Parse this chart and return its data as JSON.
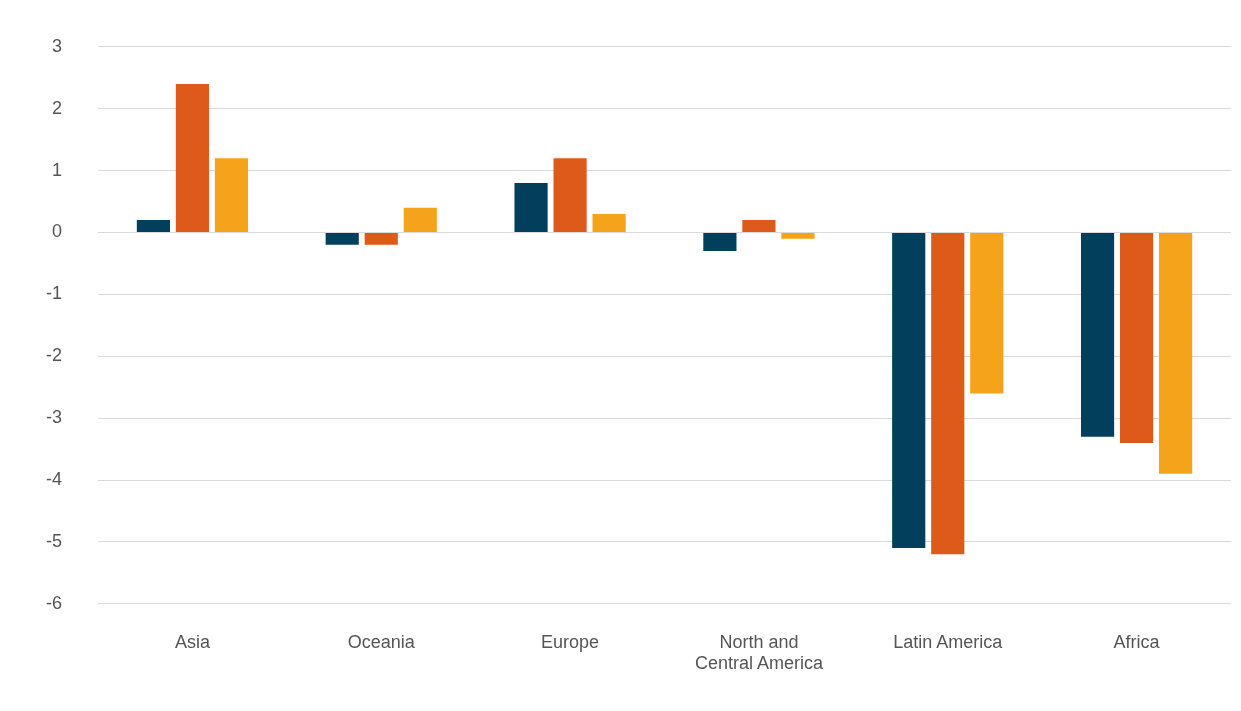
{
  "chart_data": {
    "type": "bar",
    "categories": [
      "Asia",
      "Oceania",
      "Europe",
      "North and Central America",
      "Latin America",
      "Africa"
    ],
    "series": [
      {
        "color": "#023f5c",
        "values": [
          0.2,
          -0.2,
          0.8,
          -0.3,
          -5.1,
          -3.3
        ]
      },
      {
        "color": "#dd5a1b",
        "values": [
          2.4,
          -0.2,
          1.2,
          0.2,
          -5.2,
          -3.4
        ]
      },
      {
        "color": "#f5a31a",
        "values": [
          1.2,
          0.4,
          0.3,
          -0.1,
          -2.6,
          -3.9
        ]
      }
    ],
    "ylim": [
      -6,
      3
    ],
    "yticks": [
      -6,
      -5,
      -4,
      -3,
      -2,
      -1,
      0,
      1,
      2,
      3
    ],
    "grid": "y",
    "legend": false
  }
}
